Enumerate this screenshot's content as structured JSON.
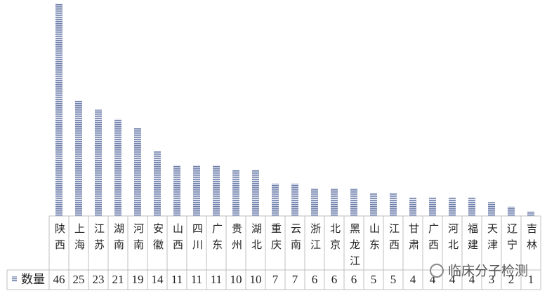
{
  "chart_data": {
    "type": "bar",
    "categories": [
      "陕西",
      "上海",
      "江苏",
      "湖南",
      "河南",
      "安徽",
      "山西",
      "四川",
      "广东",
      "贵州",
      "湖北",
      "重庆",
      "云南",
      "浙江",
      "北京",
      "黑龙江",
      "山东",
      "江西",
      "甘肃",
      "广西",
      "河北",
      "福建",
      "天津",
      "辽宁",
      "吉林"
    ],
    "series": [
      {
        "name": "数量",
        "color": "#7f8db5",
        "values": [
          46,
          25,
          23,
          21,
          19,
          14,
          11,
          11,
          11,
          10,
          10,
          7,
          7,
          6,
          6,
          6,
          5,
          5,
          4,
          4,
          4,
          4,
          3,
          2,
          1
        ]
      }
    ],
    "data_table": true
  },
  "watermark": "临床分子检测"
}
